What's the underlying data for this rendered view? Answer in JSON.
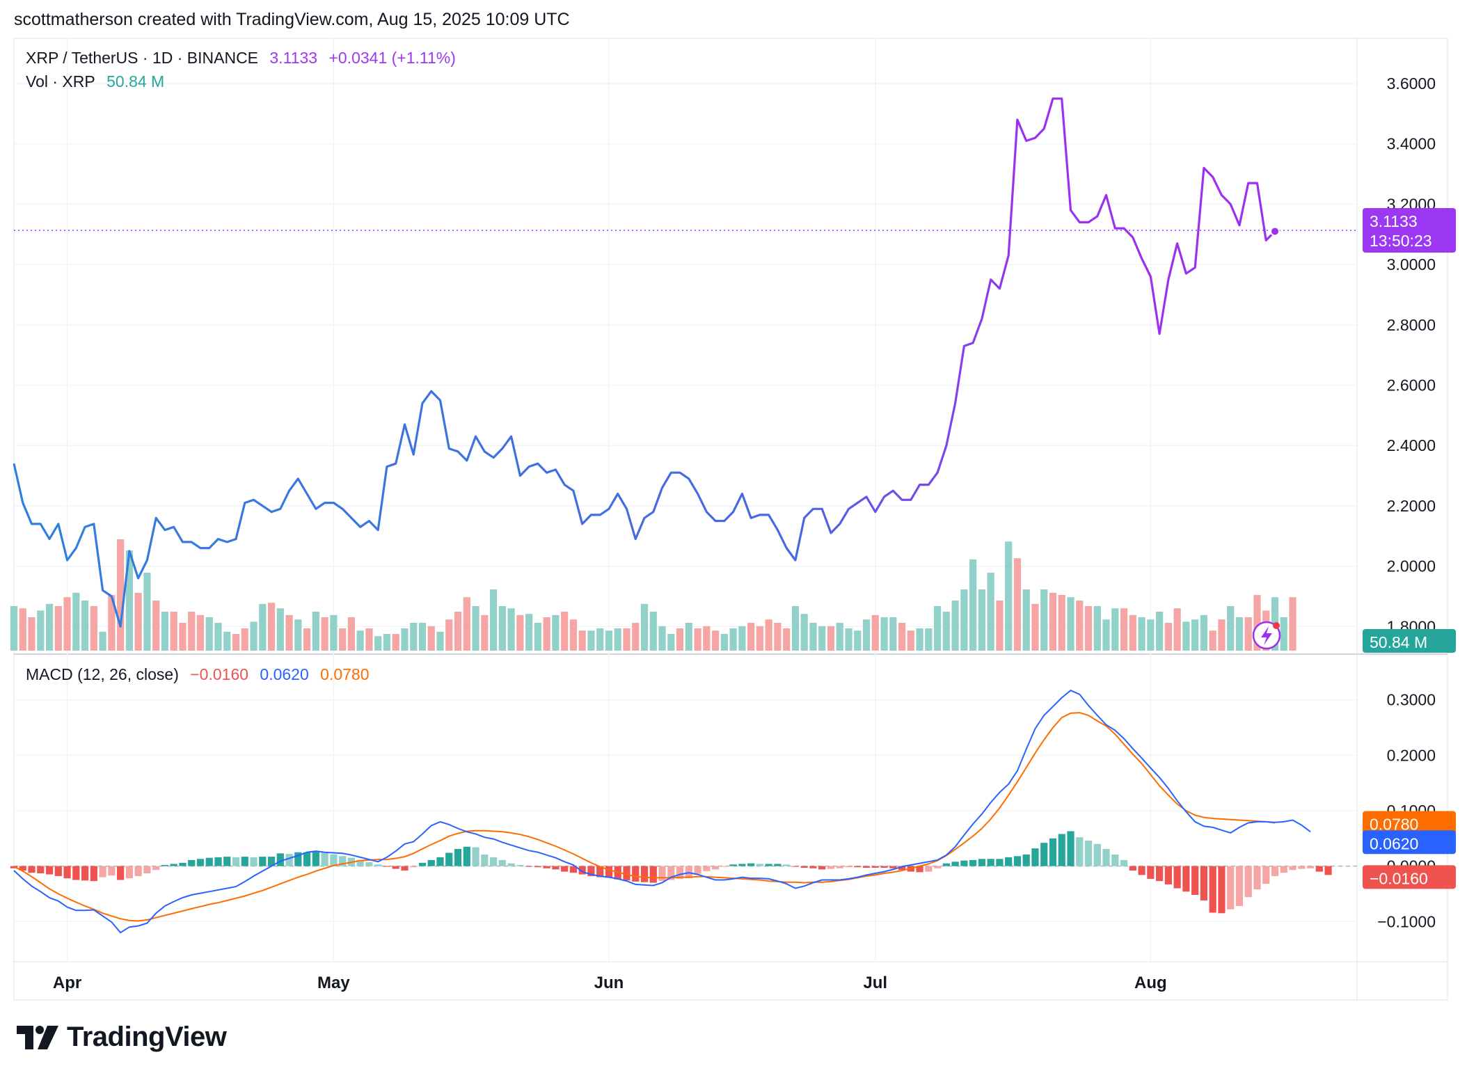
{
  "header": {
    "attribution": "scottmatherson created with TradingView.com, Aug 15, 2025 10:09 UTC"
  },
  "legend": {
    "symbol": "XRP / TetherUS · 1D · BINANCE",
    "price": "3.1133",
    "change": "+0.0341 (+1.11%)",
    "vol_label": "Vol · XRP",
    "vol_value": "50.84 M",
    "macd_label": "MACD (12, 26, close)",
    "macd_hist": "−0.0160",
    "macd_line": "0.0620",
    "macd_signal": "0.0780"
  },
  "tags": {
    "price": "3.1133",
    "countdown": "13:50:23",
    "volume": "50.84 M",
    "signal": "0.0780",
    "macd": "0.0620",
    "hist": "−0.0160"
  },
  "colors": {
    "up": "#26a69a",
    "up_light": "#92d1c9",
    "down": "#ef5350",
    "down_light": "#f5a5a3",
    "price_blue": "#2f7fe0",
    "price_purple": "#9b30f0",
    "macd": "#2962ff",
    "signal": "#ff6d00",
    "price_tag": "#9d38f2"
  },
  "footer": {
    "brand": "TradingView"
  },
  "chart_data": [
    {
      "type": "line",
      "title": "XRP / TetherUS · 1D · BINANCE",
      "ylim": [
        1.72,
        3.75
      ],
      "y_ticks": [
        "3.6000",
        "3.4000",
        "3.2000",
        "3.0000",
        "2.8000",
        "2.6000",
        "2.4000",
        "2.2000",
        "2.0000",
        "1.8000"
      ],
      "x_ticks": [
        "Apr",
        "May",
        "Jun",
        "Jul",
        "Aug"
      ],
      "last_price": 3.1133,
      "series": [
        {
          "values": [
            2.34,
            2.21,
            2.14,
            2.14,
            2.09,
            2.14,
            2.02,
            2.06,
            2.13,
            2.14,
            1.92,
            1.9,
            1.8,
            2.05,
            1.96,
            2.02,
            2.16,
            2.12,
            2.13,
            2.08,
            2.08,
            2.06,
            2.06,
            2.09,
            2.08,
            2.09,
            2.21,
            2.22,
            2.2,
            2.18,
            2.19,
            2.25,
            2.29,
            2.24,
            2.19,
            2.21,
            2.21,
            2.19,
            2.16,
            2.13,
            2.15,
            2.12,
            2.33,
            2.34,
            2.47,
            2.37,
            2.54,
            2.58,
            2.55,
            2.39,
            2.38,
            2.35,
            2.43,
            2.38,
            2.36,
            2.39,
            2.43,
            2.3,
            2.33,
            2.34,
            2.31,
            2.32,
            2.27,
            2.25,
            2.14,
            2.17,
            2.17,
            2.19,
            2.24,
            2.19,
            2.09,
            2.16,
            2.18,
            2.26,
            2.31,
            2.31,
            2.29,
            2.24,
            2.18,
            2.15,
            2.15,
            2.18,
            2.24,
            2.16,
            2.17,
            2.17,
            2.12,
            2.06,
            2.02,
            2.16,
            2.19,
            2.19,
            2.11,
            2.14,
            2.19,
            2.21,
            2.23,
            2.18,
            2.23,
            2.25,
            2.22,
            2.22,
            2.27,
            2.27,
            2.31,
            2.4,
            2.54,
            2.73,
            2.74,
            2.82,
            2.95,
            2.92,
            3.03,
            3.48,
            3.41,
            3.42,
            3.45,
            3.55,
            3.55,
            3.18,
            3.14,
            3.14,
            3.16,
            3.23,
            3.12,
            3.12,
            3.09,
            3.02,
            2.96,
            2.77,
            2.95,
            3.07,
            2.97,
            2.99,
            3.32,
            3.29,
            3.23,
            3.2,
            3.13,
            3.27,
            3.27,
            3.08,
            3.11
          ]
        }
      ]
    },
    {
      "type": "bar",
      "title": "Vol · XRP",
      "last_value": "50.84 M",
      "values": [
        40,
        38,
        30,
        36,
        42,
        40,
        48,
        52,
        45,
        40,
        17,
        50,
        100,
        90,
        52,
        70,
        45,
        35,
        35,
        25,
        35,
        32,
        30,
        25,
        17,
        15,
        20,
        26,
        42,
        43,
        38,
        32,
        28,
        20,
        35,
        30,
        32,
        20,
        30,
        18,
        20,
        13,
        15,
        15,
        20,
        25,
        25,
        22,
        17,
        28,
        35,
        48,
        40,
        32,
        55,
        40,
        38,
        32,
        33,
        25,
        30,
        32,
        35,
        28,
        18,
        18,
        20,
        18,
        20,
        20,
        25,
        42,
        35,
        22,
        15,
        20,
        25,
        20,
        22,
        18,
        15,
        20,
        22,
        25,
        22,
        28,
        25,
        20,
        40,
        33,
        25,
        22,
        22,
        25,
        20,
        18,
        28,
        32,
        30,
        30,
        25,
        18,
        20,
        20,
        40,
        35,
        45,
        55,
        82,
        55,
        70,
        45,
        98,
        83,
        55,
        42,
        55,
        52,
        50,
        48,
        45,
        40,
        40,
        28,
        38,
        38,
        32,
        30,
        28,
        35,
        25,
        38,
        26,
        28,
        32,
        18,
        28,
        40,
        30,
        30,
        50,
        36,
        48,
        30,
        48
      ],
      "directions": [
        "up",
        "down",
        "down",
        "up",
        "up",
        "down",
        "down",
        "up",
        "up",
        "down",
        "up",
        "down",
        "down",
        "up",
        "down",
        "up",
        "down",
        "up",
        "down",
        "down",
        "down",
        "down",
        "up",
        "up",
        "up",
        "down",
        "down",
        "up",
        "up",
        "down",
        "up",
        "down",
        "up",
        "down",
        "up",
        "down",
        "up",
        "down",
        "down",
        "up",
        "down",
        "up",
        "up",
        "down",
        "up",
        "up",
        "up",
        "down",
        "up",
        "down",
        "down",
        "down",
        "up",
        "down",
        "up",
        "up",
        "up",
        "down",
        "up",
        "up",
        "down",
        "up",
        "down",
        "down",
        "down",
        "up",
        "up",
        "up",
        "up",
        "down",
        "down",
        "up",
        "up",
        "up",
        "up",
        "down",
        "up",
        "down",
        "down",
        "down",
        "up",
        "up",
        "up",
        "down",
        "down",
        "down",
        "down",
        "down",
        "up",
        "up",
        "up",
        "up",
        "down",
        "up",
        "up",
        "up",
        "up",
        "down",
        "up",
        "up",
        "down",
        "down",
        "up",
        "up",
        "up",
        "up",
        "up",
        "up",
        "up",
        "up",
        "up",
        "down",
        "up",
        "down",
        "up",
        "down",
        "up",
        "down",
        "down",
        "up",
        "down",
        "down",
        "up",
        "up",
        "up",
        "down",
        "down",
        "up",
        "up",
        "up",
        "down",
        "down",
        "up",
        "up",
        "up",
        "down",
        "down",
        "up",
        "up",
        "down",
        "down",
        "down",
        "up",
        "up",
        "down"
      ]
    },
    {
      "type": "line",
      "title": "MACD (12, 26, close)",
      "ylim": [
        -0.17,
        0.37
      ],
      "y_ticks": [
        "0.3000",
        "0.2000",
        "0.1000",
        "0.0000",
        "−0.1000"
      ],
      "series": [
        {
          "name": "MACD",
          "values": [
            -0.008,
            -0.023,
            -0.036,
            -0.046,
            -0.057,
            -0.063,
            -0.074,
            -0.08,
            -0.08,
            -0.079,
            -0.09,
            -0.101,
            -0.12,
            -0.11,
            -0.108,
            -0.103,
            -0.085,
            -0.072,
            -0.064,
            -0.057,
            -0.052,
            -0.049,
            -0.046,
            -0.043,
            -0.04,
            -0.037,
            -0.028,
            -0.018,
            -0.009,
            0.0,
            0.009,
            0.014,
            0.019,
            0.025,
            0.027,
            0.025,
            0.024,
            0.023,
            0.02,
            0.016,
            0.012,
            0.008,
            0.016,
            0.027,
            0.04,
            0.044,
            0.058,
            0.073,
            0.08,
            0.075,
            0.068,
            0.062,
            0.058,
            0.052,
            0.049,
            0.043,
            0.038,
            0.033,
            0.028,
            0.025,
            0.02,
            0.015,
            0.008,
            0.002,
            -0.01,
            -0.015,
            -0.018,
            -0.02,
            -0.023,
            -0.027,
            -0.033,
            -0.034,
            -0.035,
            -0.03,
            -0.02,
            -0.015,
            -0.012,
            -0.015,
            -0.02,
            -0.025,
            -0.025,
            -0.023,
            -0.02,
            -0.022,
            -0.022,
            -0.023,
            -0.027,
            -0.032,
            -0.04,
            -0.036,
            -0.03,
            -0.025,
            -0.025,
            -0.025,
            -0.023,
            -0.02,
            -0.016,
            -0.013,
            -0.01,
            -0.006,
            -0.001,
            0.002,
            0.005,
            0.008,
            0.011,
            0.02,
            0.035,
            0.056,
            0.076,
            0.094,
            0.115,
            0.133,
            0.148,
            0.172,
            0.211,
            0.248,
            0.272,
            0.288,
            0.304,
            0.317,
            0.31,
            0.29,
            0.272,
            0.255,
            0.245,
            0.23,
            0.212,
            0.195,
            0.177,
            0.16,
            0.14,
            0.118,
            0.098,
            0.08,
            0.072,
            0.07,
            0.065,
            0.06,
            0.07,
            0.078,
            0.08,
            0.08,
            0.079,
            0.08,
            0.083,
            0.074,
            0.062
          ]
        },
        {
          "name": "Signal",
          "values": [
            -0.001,
            -0.009,
            -0.019,
            -0.03,
            -0.041,
            -0.05,
            -0.058,
            -0.065,
            -0.072,
            -0.078,
            -0.085,
            -0.09,
            -0.095,
            -0.098,
            -0.099,
            -0.097,
            -0.093,
            -0.089,
            -0.085,
            -0.081,
            -0.077,
            -0.073,
            -0.069,
            -0.066,
            -0.062,
            -0.058,
            -0.054,
            -0.049,
            -0.044,
            -0.038,
            -0.032,
            -0.026,
            -0.02,
            -0.015,
            -0.009,
            -0.004,
            0.001,
            0.004,
            0.007,
            0.01,
            0.011,
            0.012,
            0.012,
            0.014,
            0.017,
            0.023,
            0.031,
            0.039,
            0.046,
            0.054,
            0.059,
            0.063,
            0.064,
            0.064,
            0.063,
            0.062,
            0.06,
            0.057,
            0.053,
            0.048,
            0.042,
            0.036,
            0.029,
            0.022,
            0.014,
            0.006,
            -0.001,
            -0.007,
            -0.011,
            -0.015,
            -0.019,
            -0.02,
            -0.021,
            -0.021,
            -0.021,
            -0.02,
            -0.02,
            -0.019,
            -0.019,
            -0.02,
            -0.021,
            -0.022,
            -0.023,
            -0.024,
            -0.025,
            -0.027,
            -0.028,
            -0.029,
            -0.029,
            -0.03,
            -0.029,
            -0.029,
            -0.028,
            -0.026,
            -0.024,
            -0.021,
            -0.018,
            -0.016,
            -0.013,
            -0.011,
            -0.008,
            -0.004,
            0.0,
            0.004,
            0.01,
            0.019,
            0.03,
            0.042,
            0.054,
            0.068,
            0.085,
            0.105,
            0.128,
            0.152,
            0.178,
            0.204,
            0.228,
            0.25,
            0.268,
            0.276,
            0.277,
            0.272,
            0.262,
            0.253,
            0.238,
            0.22,
            0.202,
            0.185,
            0.165,
            0.145,
            0.128,
            0.112,
            0.1,
            0.092,
            0.088,
            0.086,
            0.085,
            0.084,
            0.083,
            0.082,
            0.081,
            0.08,
            0.078
          ]
        },
        {
          "name": "Histogram",
          "values": [
            -0.004,
            -0.008,
            -0.012,
            -0.013,
            -0.015,
            -0.018,
            -0.022,
            -0.025,
            -0.026,
            -0.027,
            -0.02,
            -0.017,
            -0.025,
            -0.022,
            -0.018,
            -0.013,
            -0.007,
            0.002,
            0.004,
            0.006,
            0.011,
            0.013,
            0.015,
            0.016,
            0.017,
            0.016,
            0.017,
            0.016,
            0.017,
            0.017,
            0.023,
            0.022,
            0.025,
            0.025,
            0.027,
            0.024,
            0.021,
            0.018,
            0.015,
            0.011,
            0.007,
            0.003,
            -0.001,
            -0.005,
            -0.008,
            -0.002,
            0.006,
            0.011,
            0.016,
            0.024,
            0.031,
            0.035,
            0.034,
            0.021,
            0.016,
            0.011,
            0.005,
            0.002,
            -0.001,
            -0.002,
            -0.004,
            -0.006,
            -0.01,
            -0.012,
            -0.015,
            -0.018,
            -0.02,
            -0.021,
            -0.024,
            -0.026,
            -0.028,
            -0.029,
            -0.03,
            -0.027,
            -0.025,
            -0.023,
            -0.022,
            -0.014,
            -0.009,
            -0.006,
            -0.001,
            0.003,
            0.004,
            0.005,
            0.004,
            0.004,
            0.004,
            0.003,
            -0.001,
            -0.003,
            -0.004,
            -0.006,
            -0.005,
            -0.004,
            -0.002,
            -0.002,
            -0.003,
            -0.003,
            -0.003,
            -0.004,
            -0.007,
            -0.01,
            -0.011,
            -0.01,
            -0.004,
            0.005,
            0.008,
            0.01,
            0.011,
            0.013,
            0.013,
            0.013,
            0.016,
            0.018,
            0.021,
            0.032,
            0.042,
            0.05,
            0.058,
            0.063,
            0.052,
            0.046,
            0.04,
            0.031,
            0.021,
            0.011,
            -0.008,
            -0.016,
            -0.023,
            -0.027,
            -0.033,
            -0.04,
            -0.046,
            -0.052,
            -0.062,
            -0.084,
            -0.085,
            -0.078,
            -0.072,
            -0.056,
            -0.042,
            -0.032,
            -0.018,
            -0.012,
            -0.007,
            -0.005,
            -0.004,
            -0.01,
            -0.016
          ]
        }
      ]
    }
  ]
}
